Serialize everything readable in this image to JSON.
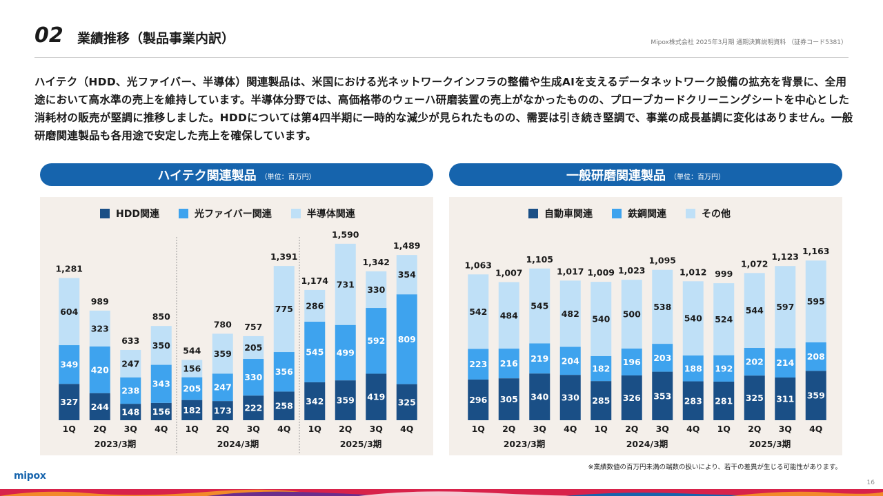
{
  "header": {
    "section_number": "02",
    "title": "業績推移（製品事業内訳）",
    "company_info": "Mipox株式会社 2025年3月期 通期決算説明資料 （証券コード5381）"
  },
  "body_text": "ハイテク（HDD、光ファイバー、半導体）関連製品は、米国における光ネットワークインフラの整備や生成AIを支えるデータネットワーク設備の拡充を背景に、全用途において高水準の売上を維持しています。半導体分野では、高価格帯のウェーハ研磨装置の売上がなかったものの、プローブカードクリーニングシートを中心とした消耗材の販売が堅調に推移しました。HDDについては第4四半期に一時的な減少が見られたものの、需要は引き続き堅調で、事業の成長基調に変化はありません。一般研磨関連製品も各用途で安定した売上を確保しています。",
  "footnote": "※業績数値の百万円未満の端数の扱いにより、若干の差異が生じる可能性があります。",
  "logo_text": "mipox",
  "page_number": "16",
  "colors": {
    "dark": "#1a4f86",
    "mid": "#3ea3ee",
    "light": "#bfe0f7",
    "pill": "#1664ad",
    "panel": "#f4efea"
  },
  "chart_data": [
    {
      "type": "bar",
      "stacked": true,
      "title": "ハイテク関連製品",
      "unit": "（単位：百万円）",
      "categories": [
        "1Q",
        "2Q",
        "3Q",
        "4Q",
        "1Q",
        "2Q",
        "3Q",
        "4Q",
        "1Q",
        "2Q",
        "3Q",
        "4Q"
      ],
      "groups": [
        "2023/3期",
        "2024/3期",
        "2025/3期"
      ],
      "series": [
        {
          "name": "HDD関連",
          "values": [
            327,
            244,
            148,
            156,
            182,
            173,
            222,
            258,
            342,
            359,
            419,
            325
          ]
        },
        {
          "name": "光ファイバー関連",
          "values": [
            349,
            420,
            238,
            343,
            205,
            247,
            330,
            356,
            545,
            499,
            592,
            809
          ]
        },
        {
          "name": "半導体関連",
          "values": [
            604,
            323,
            247,
            350,
            156,
            359,
            205,
            775,
            286,
            731,
            330,
            354
          ]
        }
      ],
      "totals": [
        1281,
        989,
        633,
        850,
        544,
        780,
        757,
        1391,
        1174,
        1590,
        1342,
        1489
      ],
      "legend_position": "top-center",
      "grid": false
    },
    {
      "type": "bar",
      "stacked": true,
      "title": "一般研磨関連製品",
      "unit": "（単位：百万円）",
      "categories": [
        "1Q",
        "2Q",
        "3Q",
        "4Q",
        "1Q",
        "2Q",
        "3Q",
        "4Q",
        "1Q",
        "2Q",
        "3Q",
        "4Q"
      ],
      "groups": [
        "2023/3期",
        "2024/3期",
        "2025/3期"
      ],
      "series": [
        {
          "name": "自動車関連",
          "values": [
            296,
            305,
            340,
            330,
            285,
            326,
            353,
            283,
            281,
            325,
            311,
            359
          ]
        },
        {
          "name": "鉄鋼関連",
          "values": [
            223,
            216,
            219,
            204,
            182,
            196,
            203,
            188,
            192,
            202,
            214,
            208
          ]
        },
        {
          "name": "その他",
          "values": [
            542,
            484,
            545,
            482,
            540,
            500,
            538,
            540,
            524,
            544,
            597,
            595
          ]
        }
      ],
      "totals": [
        1063,
        1007,
        1105,
        1017,
        1009,
        1023,
        1095,
        1012,
        999,
        1072,
        1123,
        1163
      ],
      "legend_position": "top-center",
      "grid": false
    }
  ]
}
